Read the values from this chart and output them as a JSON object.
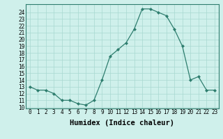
{
  "xlabel": "Humidex (Indice chaleur)",
  "data_points": {
    "0": 13,
    "1": 12.5,
    "2": 12.5,
    "3": 12,
    "4": 11,
    "5": 11,
    "6": 10.5,
    "7": 10.3,
    "8": 11,
    "9": 14,
    "10": 17.5,
    "11": 18.5,
    "12": 19.5,
    "13": 21.5,
    "14": 24.5,
    "15": 24.5,
    "16": 24,
    "17": 23.5,
    "18": 21.5,
    "19": 19,
    "20": 14,
    "21": 14.5,
    "22": 12.5,
    "23": 12.5
  },
  "ylim": [
    9.8,
    25.2
  ],
  "xlim": [
    -0.5,
    23.5
  ],
  "yticks": [
    10,
    11,
    12,
    13,
    14,
    15,
    16,
    17,
    18,
    19,
    20,
    21,
    22,
    23,
    24
  ],
  "xticks": [
    0,
    1,
    2,
    3,
    4,
    5,
    6,
    7,
    8,
    9,
    10,
    11,
    12,
    13,
    14,
    15,
    16,
    17,
    18,
    19,
    20,
    21,
    22,
    23
  ],
  "line_color": "#2e7d6e",
  "marker": "D",
  "marker_size": 2.0,
  "bg_color": "#cff0eb",
  "grid_color": "#a8d8d0",
  "axis_label_fontsize": 7.5,
  "tick_fontsize": 5.5
}
